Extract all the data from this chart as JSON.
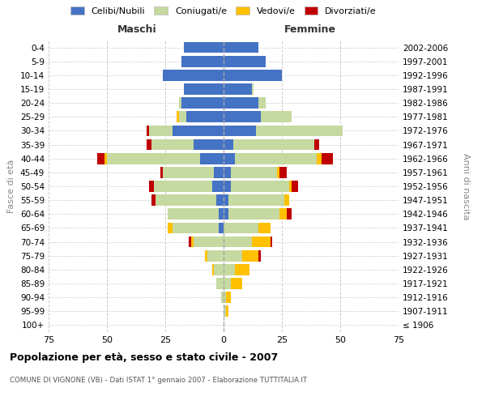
{
  "age_groups": [
    "100+",
    "95-99",
    "90-94",
    "85-89",
    "80-84",
    "75-79",
    "70-74",
    "65-69",
    "60-64",
    "55-59",
    "50-54",
    "45-49",
    "40-44",
    "35-39",
    "30-34",
    "25-29",
    "20-24",
    "15-19",
    "10-14",
    "5-9",
    "0-4"
  ],
  "birth_years": [
    "≤ 1906",
    "1907-1911",
    "1912-1916",
    "1917-1921",
    "1922-1926",
    "1927-1931",
    "1932-1936",
    "1937-1941",
    "1942-1946",
    "1947-1951",
    "1952-1956",
    "1957-1961",
    "1962-1966",
    "1967-1971",
    "1972-1976",
    "1977-1981",
    "1982-1986",
    "1987-1991",
    "1992-1996",
    "1997-2001",
    "2002-2006"
  ],
  "male": {
    "celibi": [
      0,
      0,
      0,
      0,
      0,
      0,
      0,
      2,
      2,
      3,
      5,
      4,
      10,
      13,
      22,
      16,
      18,
      17,
      26,
      18,
      17
    ],
    "coniugati": [
      0,
      0,
      1,
      3,
      4,
      7,
      13,
      20,
      22,
      26,
      25,
      22,
      40,
      18,
      10,
      3,
      1,
      0,
      0,
      0,
      0
    ],
    "vedovi": [
      0,
      0,
      0,
      0,
      1,
      1,
      1,
      2,
      0,
      0,
      0,
      0,
      1,
      0,
      0,
      1,
      0,
      0,
      0,
      0,
      0
    ],
    "divorziati": [
      0,
      0,
      0,
      0,
      0,
      0,
      1,
      0,
      0,
      2,
      2,
      1,
      3,
      2,
      1,
      0,
      0,
      0,
      0,
      0,
      0
    ]
  },
  "female": {
    "nubili": [
      0,
      0,
      0,
      0,
      0,
      0,
      0,
      0,
      2,
      2,
      3,
      3,
      5,
      4,
      14,
      16,
      15,
      12,
      25,
      18,
      15
    ],
    "coniugate": [
      0,
      1,
      1,
      3,
      5,
      8,
      12,
      15,
      22,
      24,
      25,
      20,
      35,
      35,
      37,
      13,
      3,
      1,
      0,
      0,
      0
    ],
    "vedove": [
      0,
      1,
      2,
      5,
      6,
      7,
      8,
      5,
      3,
      2,
      1,
      1,
      2,
      0,
      0,
      0,
      0,
      0,
      0,
      0,
      0
    ],
    "divorziate": [
      0,
      0,
      0,
      0,
      0,
      1,
      1,
      0,
      2,
      0,
      3,
      3,
      5,
      2,
      0,
      0,
      0,
      0,
      0,
      0,
      0
    ]
  },
  "colors": {
    "celibi": "#4472c4",
    "coniugati": "#c5d9a0",
    "vedovi": "#ffc000",
    "divorziati": "#c00000"
  },
  "xlim": [
    -75,
    75
  ],
  "xlabel_ticks": [
    -75,
    -50,
    -25,
    0,
    25,
    50,
    75
  ],
  "xlabel_labels": [
    "75",
    "50",
    "25",
    "0",
    "25",
    "50",
    "75"
  ],
  "title": "Popolazione per età, sesso e stato civile - 2007",
  "subtitle": "COMUNE DI VIGNONE (VB) - Dati ISTAT 1° gennaio 2007 - Elaborazione TUTTITALIA.IT",
  "ylabel_left": "Fasce di età",
  "ylabel_right": "Anni di nascita",
  "legend_labels": [
    "Celibi/Nubili",
    "Coniugati/e",
    "Vedovi/e",
    "Divorziati/e"
  ],
  "maschi_label": "Maschi",
  "femmine_label": "Femmine"
}
